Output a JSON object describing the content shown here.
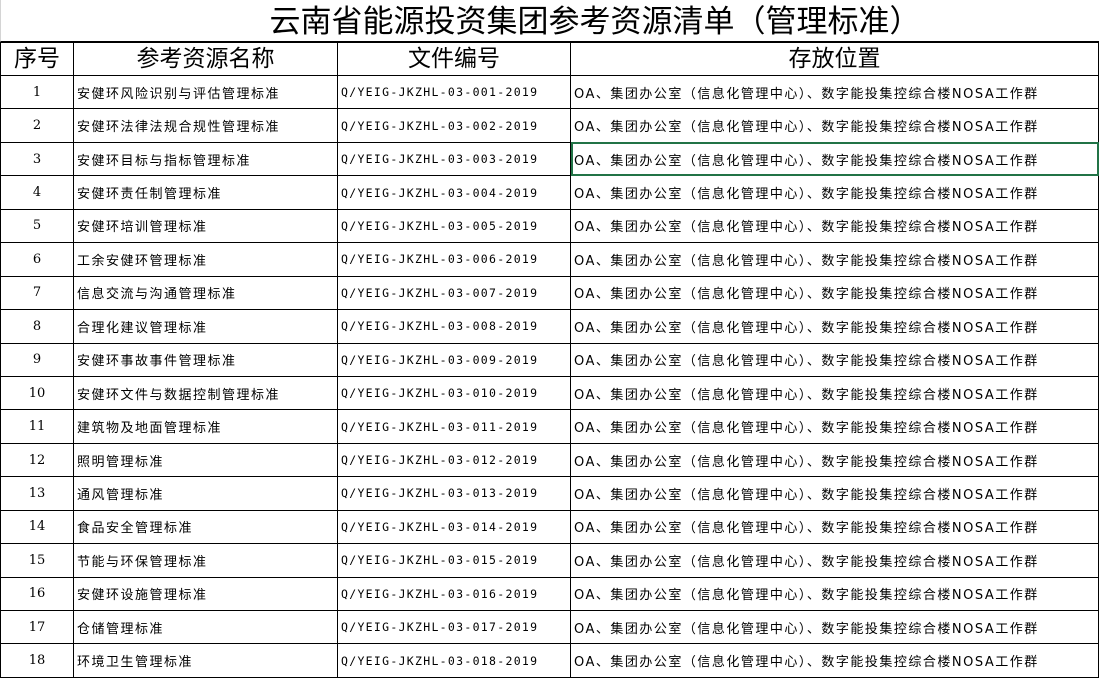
{
  "title": "云南省能源投资集团参考资源清单（管理标准）",
  "headers": [
    "序号",
    "参考资源名称",
    "文件编号",
    "存放位置"
  ],
  "selected_cell": {
    "row": 3,
    "column": "存放位置"
  },
  "rows": [
    {
      "no": "1",
      "name": "安健环风险识别与评估管理标准",
      "code": "Q/YEIG-JKZHL-03-001-2019",
      "loc": "OA、集团办公室（信息化管理中心）、数字能投集控综合楼NOSA工作群"
    },
    {
      "no": "2",
      "name": "安健环法律法规合规性管理标准",
      "code": "Q/YEIG-JKZHL-03-002-2019",
      "loc": "OA、集团办公室（信息化管理中心）、数字能投集控综合楼NOSA工作群"
    },
    {
      "no": "3",
      "name": "安健环目标与指标管理标准",
      "code": "Q/YEIG-JKZHL-03-003-2019",
      "loc": "OA、集团办公室（信息化管理中心）、数字能投集控综合楼NOSA工作群"
    },
    {
      "no": "4",
      "name": "安健环责任制管理标准",
      "code": "Q/YEIG-JKZHL-03-004-2019",
      "loc": "OA、集团办公室（信息化管理中心）、数字能投集控综合楼NOSA工作群"
    },
    {
      "no": "5",
      "name": "安健环培训管理标准",
      "code": "Q/YEIG-JKZHL-03-005-2019",
      "loc": "OA、集团办公室（信息化管理中心）、数字能投集控综合楼NOSA工作群"
    },
    {
      "no": "6",
      "name": "工余安健环管理标准",
      "code": "Q/YEIG-JKZHL-03-006-2019",
      "loc": "OA、集团办公室（信息化管理中心）、数字能投集控综合楼NOSA工作群"
    },
    {
      "no": "7",
      "name": "信息交流与沟通管理标准",
      "code": "Q/YEIG-JKZHL-03-007-2019",
      "loc": "OA、集团办公室（信息化管理中心）、数字能投集控综合楼NOSA工作群"
    },
    {
      "no": "8",
      "name": "合理化建议管理标准",
      "code": "Q/YEIG-JKZHL-03-008-2019",
      "loc": "OA、集团办公室（信息化管理中心）、数字能投集控综合楼NOSA工作群"
    },
    {
      "no": "9",
      "name": "安健环事故事件管理标准",
      "code": "Q/YEIG-JKZHL-03-009-2019",
      "loc": "OA、集团办公室（信息化管理中心）、数字能投集控综合楼NOSA工作群"
    },
    {
      "no": "10",
      "name": "安健环文件与数据控制管理标准",
      "code": "Q/YEIG-JKZHL-03-010-2019",
      "loc": "OA、集团办公室（信息化管理中心）、数字能投集控综合楼NOSA工作群"
    },
    {
      "no": "11",
      "name": "建筑物及地面管理标准",
      "code": "Q/YEIG-JKZHL-03-011-2019",
      "loc": "OA、集团办公室（信息化管理中心）、数字能投集控综合楼NOSA工作群"
    },
    {
      "no": "12",
      "name": "照明管理标准",
      "code": "Q/YEIG-JKZHL-03-012-2019",
      "loc": "OA、集团办公室（信息化管理中心）、数字能投集控综合楼NOSA工作群"
    },
    {
      "no": "13",
      "name": "通风管理标准",
      "code": "Q/YEIG-JKZHL-03-013-2019",
      "loc": "OA、集团办公室（信息化管理中心）、数字能投集控综合楼NOSA工作群"
    },
    {
      "no": "14",
      "name": "食品安全管理标准",
      "code": "Q/YEIG-JKZHL-03-014-2019",
      "loc": "OA、集团办公室（信息化管理中心）、数字能投集控综合楼NOSA工作群"
    },
    {
      "no": "15",
      "name": "节能与环保管理标准",
      "code": "Q/YEIG-JKZHL-03-015-2019",
      "loc": "OA、集团办公室（信息化管理中心）、数字能投集控综合楼NOSA工作群"
    },
    {
      "no": "16",
      "name": "安健环设施管理标准",
      "code": "Q/YEIG-JKZHL-03-016-2019",
      "loc": "OA、集团办公室（信息化管理中心）、数字能投集控综合楼NOSA工作群"
    },
    {
      "no": "17",
      "name": "仓储管理标准",
      "code": "Q/YEIG-JKZHL-03-017-2019",
      "loc": "OA、集团办公室（信息化管理中心）、数字能投集控综合楼NOSA工作群"
    },
    {
      "no": "18",
      "name": "环境卫生管理标准",
      "code": "Q/YEIG-JKZHL-03-018-2019",
      "loc": "OA、集团办公室（信息化管理中心）、数字能投集控综合楼NOSA工作群"
    }
  ]
}
